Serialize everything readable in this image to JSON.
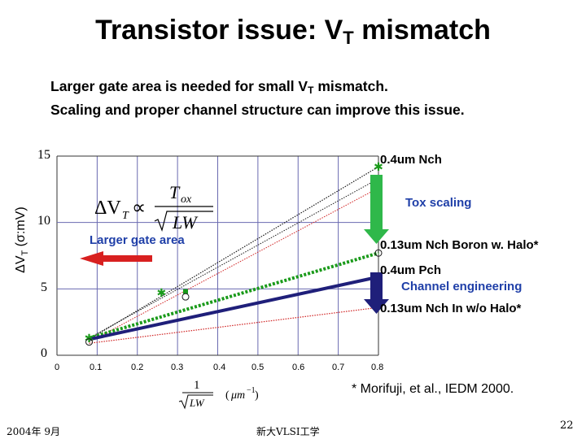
{
  "slide": {
    "title_main": "Transistor issue: V",
    "title_sub": "T",
    "title_end": " mismatch",
    "subtitle_line1_a": "Larger gate area is needed for small V",
    "subtitle_line1_sub": "T",
    "subtitle_line1_b": " mismatch.",
    "subtitle_line2": "Scaling and proper channel structure can  improve this issue.",
    "reference": "* Morifuji, et al., IEDM 2000.",
    "footer_left": "2004年  9月",
    "footer_center": "新大VLSI工学",
    "page_number": "22"
  },
  "annotations": {
    "larger_gate_area": "Larger gate area",
    "tox_scaling": "Tox scaling",
    "channel_engineering": "Channel engineering",
    "formula": "ΔVT ∝ Tox / √(LW)",
    "x_axis_formula": "1/√(LW) (μm⁻¹)",
    "ylabel_delta": "ΔV",
    "ylabel_sub": "T",
    "ylabel_rest": " (σ:mV)"
  },
  "colors": {
    "nch04": "#1a1a1a",
    "nch013_boron": "#1a9a1a",
    "pch04": "#1f1f7a",
    "nch013_in": "#d02020",
    "arrow_red": "#d82020",
    "arrow_green": "#2fb84a",
    "grid": "#6a6ab0"
  },
  "chart_data": {
    "type": "line",
    "title": "",
    "xlabel": "1/√(LW) (μm⁻¹)",
    "ylabel": "ΔVT (σ:mV)",
    "xlim": [
      0,
      0.8
    ],
    "ylim": [
      0,
      15
    ],
    "x_ticks": [
      "0",
      "0.1",
      "0.2",
      "0.3",
      "0.4",
      "0.5",
      "0.6",
      "0.7",
      "0.8"
    ],
    "y_ticks": [
      "0",
      "5",
      "10",
      "15"
    ],
    "grid": true,
    "series": [
      {
        "name": "0.4um Nch",
        "color_key": "nch04",
        "style": "dotted-thin",
        "x": [
          0.08,
          0.8
        ],
        "y": [
          1.2,
          14.2
        ]
      },
      {
        "name": "0.13um Nch Boron w. Halo*",
        "color_key": "nch013_boron",
        "style": "dotted-thick",
        "x": [
          0.08,
          0.8
        ],
        "y": [
          1.3,
          7.7
        ]
      },
      {
        "name": "0.4um Pch",
        "color_key": "pch04",
        "style": "solid-thick",
        "x": [
          0.08,
          0.8
        ],
        "y": [
          1.2,
          5.9
        ]
      },
      {
        "name": "0.13um Nch In w/o Halo*",
        "color_key": "nch013_in",
        "style": "dotted-thin",
        "x": [
          0.08,
          0.8
        ],
        "y": [
          0.9,
          3.6
        ]
      }
    ],
    "extra_lines": [
      {
        "color_key": "nch04",
        "x": [
          0.08,
          0.8
        ],
        "y": [
          1.3,
          13.3
        ]
      },
      {
        "color_key": "nch013_in",
        "x": [
          0.08,
          0.8
        ],
        "y": [
          1.0,
          12.6
        ]
      }
    ],
    "points": [
      {
        "x": 0.08,
        "y": 1.3,
        "marker": "star",
        "color_key": "nch013_boron"
      },
      {
        "x": 0.08,
        "y": 1.0,
        "marker": "circle",
        "color_key": "nch04"
      },
      {
        "x": 0.26,
        "y": 4.7,
        "marker": "star",
        "color_key": "nch013_boron"
      },
      {
        "x": 0.32,
        "y": 4.8,
        "marker": "square",
        "color_key": "nch013_boron"
      },
      {
        "x": 0.32,
        "y": 4.4,
        "marker": "circle",
        "color_key": "nch04"
      },
      {
        "x": 0.8,
        "y": 14.2,
        "marker": "star",
        "color_key": "nch013_boron"
      },
      {
        "x": 0.8,
        "y": 7.7,
        "marker": "circle",
        "color_key": "nch04"
      }
    ]
  }
}
